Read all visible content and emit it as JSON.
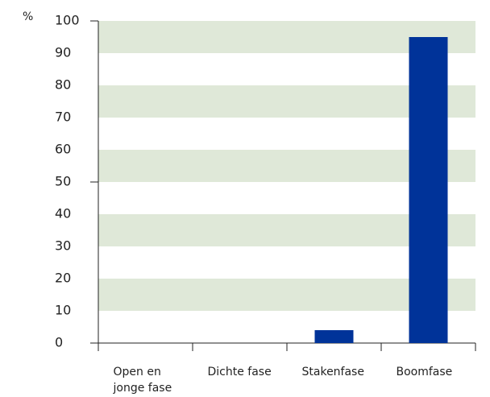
{
  "chart_data": {
    "type": "bar",
    "y_label": "%",
    "categories": [
      "Open en jonge fase",
      "Dichte fase",
      "Stakenfase",
      "Boomfase"
    ],
    "values": [
      0,
      0,
      4,
      95
    ],
    "color": "#003399",
    "ylim": [
      0,
      100
    ],
    "yticks": [
      0,
      10,
      20,
      30,
      40,
      50,
      60,
      70,
      80,
      90,
      100
    ],
    "grid": true,
    "grid_color": "#dfe8d8"
  }
}
